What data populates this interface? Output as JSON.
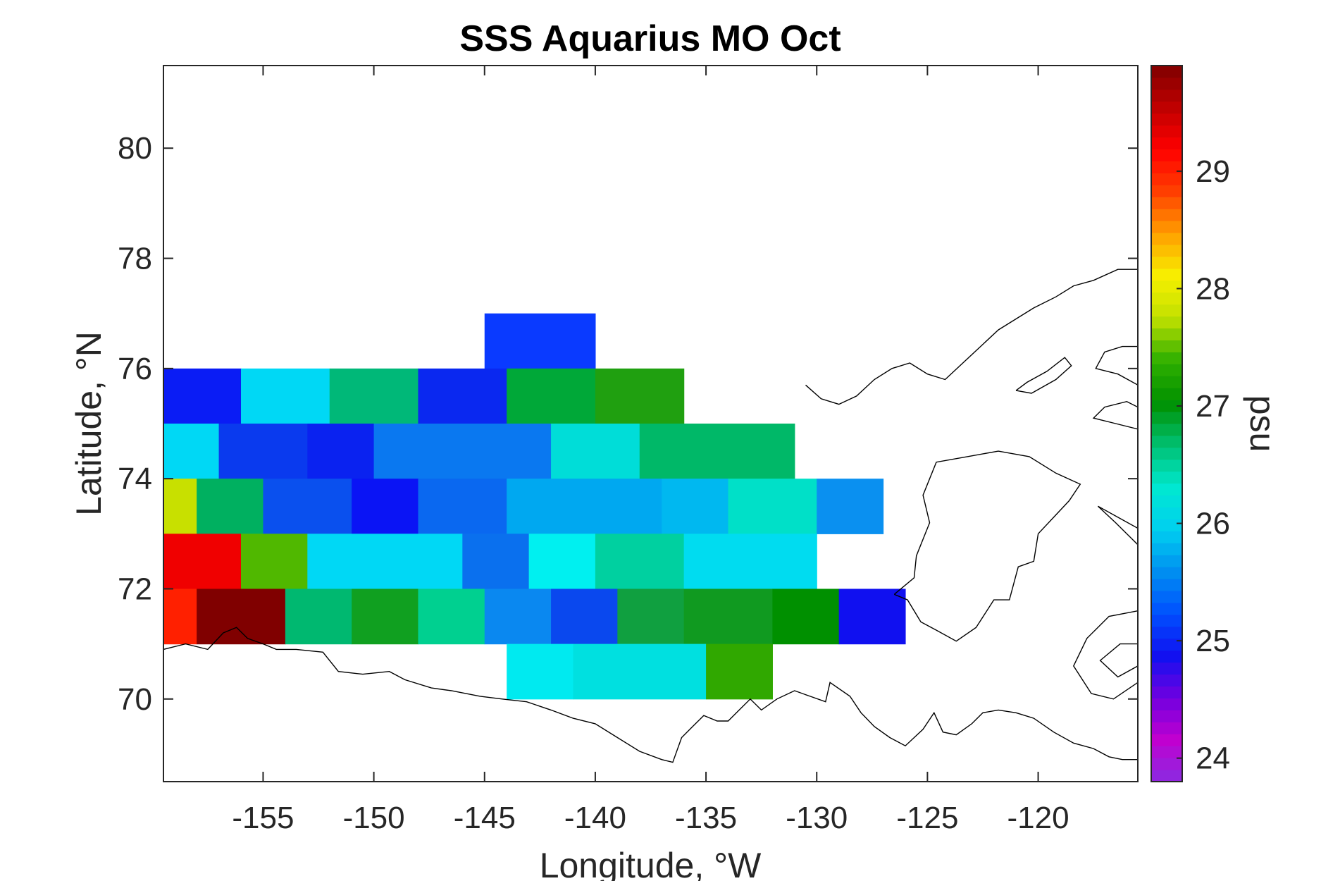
{
  "chart_data": {
    "type": "heatmap",
    "title": "SSS Aquarius MO Oct",
    "xlabel": "Longitude, °W",
    "ylabel": "Latitude, °N",
    "colorbar_label": "psu",
    "xlim": [
      -159.5,
      -115.5
    ],
    "ylim": [
      68.5,
      81.5
    ],
    "xticks": [
      -155,
      -150,
      -145,
      -140,
      -135,
      -130,
      -125,
      -120
    ],
    "yticks": [
      70,
      72,
      74,
      76,
      78,
      80
    ],
    "clim": [
      23.8,
      29.9
    ],
    "colorbar_ticks": [
      24,
      25,
      26,
      27,
      28,
      29
    ],
    "grid": false,
    "colormap": [
      "#8a2be2",
      "#c000d0",
      "#7000e0",
      "#1010f0",
      "#0050ff",
      "#0090f0",
      "#00d0f0",
      "#00e8d0",
      "#00c070",
      "#009000",
      "#30b000",
      "#c0e000",
      "#f8f000",
      "#ffa000",
      "#ff4000",
      "#ff0000",
      "#c00000",
      "#800000"
    ],
    "cells": [
      {
        "lon": [
          -145,
          -140
        ],
        "lat": [
          76,
          77
        ],
        "value": 25.8,
        "color": "#0a3aff"
      },
      {
        "lon": [
          -159.5,
          -156
        ],
        "lat": [
          75,
          76
        ],
        "value": 25.6,
        "color": "#0a1cf5"
      },
      {
        "lon": [
          -156,
          -152
        ],
        "lat": [
          75,
          76
        ],
        "value": 26.4,
        "color": "#00d8f5"
      },
      {
        "lon": [
          -152,
          -148
        ],
        "lat": [
          75,
          76
        ],
        "value": 26.8,
        "color": "#00b878"
      },
      {
        "lon": [
          -148,
          -144
        ],
        "lat": [
          75,
          76
        ],
        "value": 25.6,
        "color": "#0a28f0"
      },
      {
        "lon": [
          -144,
          -140
        ],
        "lat": [
          75,
          76
        ],
        "value": 27.1,
        "color": "#00a838"
      },
      {
        "lon": [
          -140,
          -136
        ],
        "lat": [
          75,
          76
        ],
        "value": 27.3,
        "color": "#20a010"
      },
      {
        "lon": [
          -159.5,
          -157
        ],
        "lat": [
          74,
          75
        ],
        "value": 26.4,
        "color": "#00d8f5"
      },
      {
        "lon": [
          -157,
          -153
        ],
        "lat": [
          74,
          75
        ],
        "value": 25.7,
        "color": "#0a3aee"
      },
      {
        "lon": [
          -153,
          -150
        ],
        "lat": [
          74,
          75
        ],
        "value": 25.6,
        "color": "#0a22f0"
      },
      {
        "lon": [
          -150,
          -142
        ],
        "lat": [
          74,
          75
        ],
        "value": 25.9,
        "color": "#0a78f0"
      },
      {
        "lon": [
          -142,
          -138
        ],
        "lat": [
          74,
          75
        ],
        "value": 26.6,
        "color": "#00ddd8"
      },
      {
        "lon": [
          -138,
          -131
        ],
        "lat": [
          74,
          75
        ],
        "value": 26.9,
        "color": "#00b868"
      },
      {
        "lon": [
          -159.5,
          -158
        ],
        "lat": [
          73,
          74
        ],
        "value": 28.0,
        "color": "#c8e000"
      },
      {
        "lon": [
          -158,
          -155
        ],
        "lat": [
          73,
          74
        ],
        "value": 26.9,
        "color": "#00b060"
      },
      {
        "lon": [
          -155,
          -151
        ],
        "lat": [
          73,
          74
        ],
        "value": 25.7,
        "color": "#0a50ee"
      },
      {
        "lon": [
          -151,
          -148
        ],
        "lat": [
          73,
          74
        ],
        "value": 25.5,
        "color": "#0a14f5"
      },
      {
        "lon": [
          -148,
          -144
        ],
        "lat": [
          73,
          74
        ],
        "value": 25.8,
        "color": "#0a68f0"
      },
      {
        "lon": [
          -144,
          -137
        ],
        "lat": [
          73,
          74
        ],
        "value": 26.1,
        "color": "#00a8f0"
      },
      {
        "lon": [
          -137,
          -134
        ],
        "lat": [
          73,
          74
        ],
        "value": 26.2,
        "color": "#00b8f0"
      },
      {
        "lon": [
          -134,
          -130
        ],
        "lat": [
          73,
          74
        ],
        "value": 26.6,
        "color": "#00e0c8"
      },
      {
        "lon": [
          -130,
          -127
        ],
        "lat": [
          73,
          74
        ],
        "value": 26.0,
        "color": "#0a90f0"
      },
      {
        "lon": [
          -159.5,
          -156
        ],
        "lat": [
          72,
          73
        ],
        "value": 29.3,
        "color": "#f00000"
      },
      {
        "lon": [
          -156,
          -153
        ],
        "lat": [
          72,
          73
        ],
        "value": 27.6,
        "color": "#50b800"
      },
      {
        "lon": [
          -153,
          -146
        ],
        "lat": [
          72,
          73
        ],
        "value": 26.4,
        "color": "#00d8f5"
      },
      {
        "lon": [
          -146,
          -143
        ],
        "lat": [
          72,
          73
        ],
        "value": 25.9,
        "color": "#0a70ee"
      },
      {
        "lon": [
          -143,
          -140
        ],
        "lat": [
          72,
          73
        ],
        "value": 26.5,
        "color": "#00f0f0"
      },
      {
        "lon": [
          -140,
          -136
        ],
        "lat": [
          72,
          73
        ],
        "value": 26.7,
        "color": "#00d0a0"
      },
      {
        "lon": [
          -136,
          -130
        ],
        "lat": [
          72,
          73
        ],
        "value": 26.4,
        "color": "#00dcf0"
      },
      {
        "lon": [
          -159.5,
          -158
        ],
        "lat": [
          71,
          72
        ],
        "value": 29.2,
        "color": "#ff2000"
      },
      {
        "lon": [
          -158,
          -154
        ],
        "lat": [
          71,
          72
        ],
        "value": 29.9,
        "color": "#800000"
      },
      {
        "lon": [
          -154,
          -151
        ],
        "lat": [
          71,
          72
        ],
        "value": 26.9,
        "color": "#00b870"
      },
      {
        "lon": [
          -151,
          -148
        ],
        "lat": [
          71,
          72
        ],
        "value": 27.2,
        "color": "#10a020"
      },
      {
        "lon": [
          -148,
          -145
        ],
        "lat": [
          71,
          72
        ],
        "value": 26.8,
        "color": "#00d090"
      },
      {
        "lon": [
          -145,
          -142
        ],
        "lat": [
          71,
          72
        ],
        "value": 26.0,
        "color": "#0a88f0"
      },
      {
        "lon": [
          -142,
          -139
        ],
        "lat": [
          71,
          72
        ],
        "value": 25.7,
        "color": "#0a48ee"
      },
      {
        "lon": [
          -139,
          -136
        ],
        "lat": [
          71,
          72
        ],
        "value": 27.0,
        "color": "#10a040"
      },
      {
        "lon": [
          -136,
          -132
        ],
        "lat": [
          71,
          72
        ],
        "value": 27.1,
        "color": "#109a20"
      },
      {
        "lon": [
          -132,
          -129
        ],
        "lat": [
          71,
          72
        ],
        "value": 27.3,
        "color": "#009000"
      },
      {
        "lon": [
          -129,
          -126
        ],
        "lat": [
          71,
          72
        ],
        "value": 25.5,
        "color": "#1010f0"
      },
      {
        "lon": [
          -144,
          -141
        ],
        "lat": [
          70,
          71
        ],
        "value": 26.5,
        "color": "#00eaf0"
      },
      {
        "lon": [
          -141,
          -135
        ],
        "lat": [
          70,
          71
        ],
        "value": 26.6,
        "color": "#00e0e0"
      },
      {
        "lon": [
          -135,
          -132
        ],
        "lat": [
          70,
          71
        ],
        "value": 27.5,
        "color": "#30a800"
      }
    ],
    "coastlines": [
      [
        [
          -159.5,
          70.9
        ],
        [
          -158.5,
          71.0
        ],
        [
          -157.5,
          70.9
        ],
        [
          -156.8,
          71.2
        ],
        [
          -156.2,
          71.3
        ],
        [
          -155.7,
          71.1
        ],
        [
          -155.0,
          71.0
        ],
        [
          -154.4,
          70.9
        ],
        [
          -153.5,
          70.9
        ],
        [
          -152.3,
          70.85
        ],
        [
          -151.6,
          70.5
        ],
        [
          -150.5,
          70.45
        ],
        [
          -149.3,
          70.5
        ],
        [
          -148.6,
          70.35
        ],
        [
          -147.4,
          70.2
        ],
        [
          -146.5,
          70.15
        ],
        [
          -145.2,
          70.05
        ],
        [
          -144.2,
          70.0
        ],
        [
          -143.1,
          69.95
        ],
        [
          -142.0,
          69.8
        ],
        [
          -141.0,
          69.65
        ],
        [
          -140.0,
          69.55
        ],
        [
          -139.0,
          69.3
        ],
        [
          -138.0,
          69.05
        ],
        [
          -137.0,
          68.9
        ],
        [
          -136.5,
          68.85
        ],
        [
          -136.1,
          69.3
        ],
        [
          -135.6,
          69.5
        ],
        [
          -135.1,
          69.7
        ],
        [
          -134.5,
          69.6
        ],
        [
          -134.0,
          69.6
        ],
        [
          -133.5,
          69.8
        ],
        [
          -133.0,
          70.0
        ],
        [
          -132.5,
          69.8
        ],
        [
          -131.8,
          70.0
        ],
        [
          -131.0,
          70.15
        ],
        [
          -130.3,
          70.05
        ],
        [
          -129.6,
          69.95
        ],
        [
          -129.4,
          70.3
        ],
        [
          -128.5,
          70.05
        ],
        [
          -128.0,
          69.75
        ],
        [
          -127.4,
          69.5
        ],
        [
          -126.7,
          69.3
        ],
        [
          -126.0,
          69.15
        ],
        [
          -125.2,
          69.45
        ],
        [
          -124.7,
          69.75
        ],
        [
          -124.3,
          69.4
        ],
        [
          -123.7,
          69.35
        ],
        [
          -123.0,
          69.55
        ],
        [
          -122.5,
          69.75
        ],
        [
          -121.8,
          69.8
        ],
        [
          -121.0,
          69.75
        ],
        [
          -120.2,
          69.65
        ],
        [
          -119.3,
          69.4
        ],
        [
          -118.4,
          69.2
        ],
        [
          -117.5,
          69.1
        ],
        [
          -116.8,
          68.95
        ],
        [
          -116.2,
          68.9
        ],
        [
          -115.5,
          68.9
        ]
      ],
      [
        [
          -126.5,
          71.9
        ],
        [
          -125.9,
          71.8
        ],
        [
          -125.3,
          71.4
        ],
        [
          -124.6,
          71.25
        ],
        [
          -123.7,
          71.05
        ],
        [
          -122.8,
          71.3
        ],
        [
          -122.0,
          71.8
        ],
        [
          -121.3,
          71.8
        ],
        [
          -120.9,
          72.4
        ],
        [
          -120.2,
          72.5
        ],
        [
          -120.0,
          73.0
        ],
        [
          -119.3,
          73.3
        ],
        [
          -118.6,
          73.6
        ],
        [
          -118.1,
          73.9
        ],
        [
          -119.2,
          74.1
        ],
        [
          -120.4,
          74.4
        ],
        [
          -121.8,
          74.5
        ],
        [
          -123.2,
          74.4
        ],
        [
          -124.6,
          74.3
        ],
        [
          -125.2,
          73.7
        ],
        [
          -124.9,
          73.2
        ],
        [
          -125.5,
          72.6
        ],
        [
          -125.6,
          72.2
        ],
        [
          -126.5,
          71.9
        ]
      ],
      [
        [
          -130.5,
          75.7
        ],
        [
          -129.8,
          75.45
        ],
        [
          -129.0,
          75.35
        ],
        [
          -128.2,
          75.5
        ],
        [
          -127.4,
          75.8
        ],
        [
          -126.6,
          76.0
        ],
        [
          -125.8,
          76.1
        ],
        [
          -125.0,
          75.9
        ],
        [
          -124.2,
          75.8
        ],
        [
          -123.4,
          76.1
        ],
        [
          -122.6,
          76.4
        ],
        [
          -121.8,
          76.7
        ],
        [
          -121.0,
          76.9
        ],
        [
          -120.2,
          77.1
        ],
        [
          -119.2,
          77.3
        ],
        [
          -118.4,
          77.5
        ],
        [
          -117.5,
          77.6
        ],
        [
          -116.4,
          77.8
        ],
        [
          -115.5,
          77.8
        ]
      ],
      [
        [
          -115.5,
          75.7
        ],
        [
          -116.4,
          75.9
        ],
        [
          -117.4,
          76.0
        ],
        [
          -117.0,
          76.3
        ],
        [
          -116.2,
          76.4
        ],
        [
          -115.5,
          76.4
        ]
      ],
      [
        [
          -115.5,
          74.9
        ],
        [
          -116.5,
          75.0
        ],
        [
          -117.5,
          75.1
        ],
        [
          -117.0,
          75.3
        ],
        [
          -116.0,
          75.4
        ],
        [
          -115.5,
          75.3
        ]
      ],
      [
        [
          -121.0,
          75.6
        ],
        [
          -120.5,
          75.75
        ],
        [
          -119.6,
          75.95
        ],
        [
          -118.8,
          76.2
        ],
        [
          -118.5,
          76.05
        ],
        [
          -119.2,
          75.8
        ],
        [
          -120.3,
          75.55
        ],
        [
          -121.0,
          75.6
        ]
      ],
      [
        [
          -115.5,
          72.8
        ],
        [
          -116.5,
          73.2
        ],
        [
          -117.3,
          73.5
        ],
        [
          -116.4,
          73.3
        ],
        [
          -115.5,
          73.1
        ]
      ],
      [
        [
          -115.5,
          71.6
        ],
        [
          -116.8,
          71.5
        ],
        [
          -117.8,
          71.1
        ],
        [
          -118.4,
          70.6
        ],
        [
          -117.6,
          70.1
        ],
        [
          -116.6,
          70.0
        ],
        [
          -115.5,
          70.3
        ]
      ],
      [
        [
          -115.5,
          70.6
        ],
        [
          -116.4,
          70.4
        ],
        [
          -117.2,
          70.7
        ],
        [
          -116.3,
          71.0
        ],
        [
          -115.5,
          71.0
        ]
      ]
    ]
  }
}
